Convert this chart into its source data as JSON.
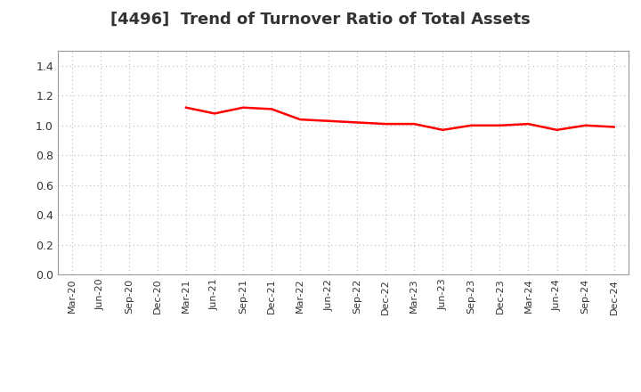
{
  "title": "[4496]  Trend of Turnover Ratio of Total Assets",
  "title_fontsize": 13,
  "title_color": "#333333",
  "line_color": "#FF0000",
  "line_width": 1.8,
  "background_color": "#FFFFFF",
  "plot_bg_color": "#FFFFFF",
  "grid_color": "#BBBBBB",
  "spine_color": "#999999",
  "ylim": [
    0.0,
    1.5
  ],
  "yticks": [
    0.0,
    0.2,
    0.4,
    0.6,
    0.8,
    1.0,
    1.2,
    1.4
  ],
  "x_labels": [
    "Mar-20",
    "Jun-20",
    "Sep-20",
    "Dec-20",
    "Mar-21",
    "Jun-21",
    "Sep-21",
    "Dec-21",
    "Mar-22",
    "Jun-22",
    "Sep-22",
    "Dec-22",
    "Mar-23",
    "Jun-23",
    "Sep-23",
    "Dec-23",
    "Mar-24",
    "Jun-24",
    "Sep-24",
    "Dec-24"
  ],
  "values": [
    null,
    null,
    null,
    null,
    1.12,
    1.08,
    1.12,
    1.11,
    1.04,
    1.03,
    1.02,
    1.01,
    1.01,
    0.97,
    1.0,
    1.0,
    1.01,
    0.97,
    1.0,
    0.99
  ]
}
